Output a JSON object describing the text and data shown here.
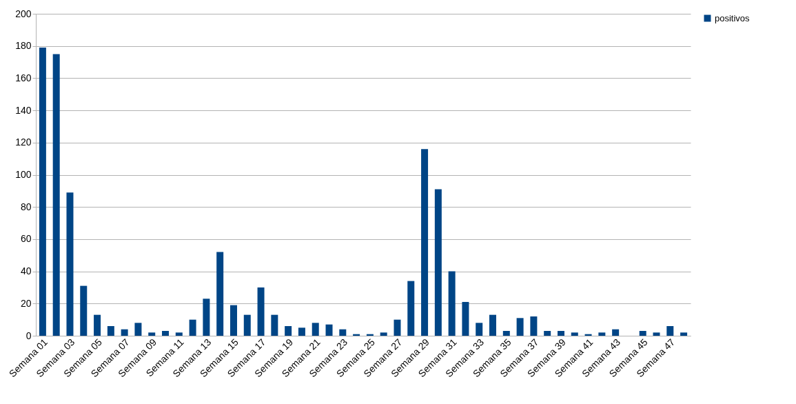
{
  "chart_data": {
    "type": "bar",
    "categories": [
      "Semana 01",
      null,
      "Semana 03",
      null,
      "Semana 05",
      null,
      "Semana 07",
      null,
      "Semana 09",
      null,
      "Semana 11",
      null,
      "Semana 13",
      null,
      "Semana 15",
      null,
      "Semana 17",
      null,
      "Semana 19",
      null,
      "Semana 21",
      null,
      "Semana 23",
      null,
      "Semana 25",
      null,
      "Semana 27",
      null,
      "Semana 29",
      null,
      "Semana 31",
      null,
      "Semana 33",
      null,
      "Semana 35",
      null,
      "Semana 37",
      null,
      "Semana 39",
      null,
      "Semana 41",
      null,
      "Semana 43",
      null,
      "Semana 45",
      null,
      "Semana 47",
      null
    ],
    "series": [
      {
        "name": "positivos",
        "color": "#004586",
        "values": [
          179,
          175,
          89,
          31,
          13,
          6,
          4,
          8,
          2,
          3,
          2,
          10,
          23,
          52,
          19,
          13,
          30,
          13,
          6,
          5,
          8,
          7,
          4,
          1,
          1,
          2,
          10,
          34,
          116,
          91,
          40,
          21,
          8,
          13,
          3,
          11,
          12,
          3,
          3,
          2,
          1,
          2,
          4,
          0,
          3,
          2,
          6,
          2
        ]
      }
    ],
    "ylim": [
      0,
      200
    ],
    "yticks": [
      0,
      20,
      40,
      60,
      80,
      100,
      120,
      140,
      160,
      180,
      200
    ],
    "grid": "y",
    "legend": "right"
  }
}
